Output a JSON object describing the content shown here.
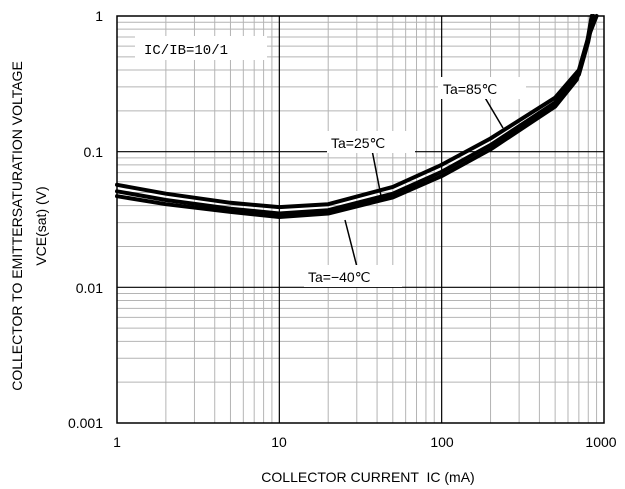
{
  "chart_data": {
    "type": "line",
    "xscale": "log",
    "yscale": "log",
    "xlim": [
      1,
      1000
    ],
    "ylim": [
      0.001,
      1
    ],
    "grid": true,
    "xlabel": "COLLECTOR CURRENT  IC (mA)",
    "ylabel_line1": "COLLECTOR TO EMITTERSATURATION VOLTAGE",
    "ylabel_line2": "VCE(sat) (V)",
    "condition_label": "IC/IB=10/1",
    "x_tick_labels": [
      "1",
      "10",
      "100",
      "1000"
    ],
    "y_tick_labels": [
      "0.001",
      "0.01",
      "0.1",
      "1"
    ],
    "series": [
      {
        "name": "Ta=85℃",
        "x": [
          1,
          2,
          5,
          10,
          20,
          50,
          100,
          200,
          500,
          700,
          800,
          900
        ],
        "y": [
          0.057,
          0.049,
          0.042,
          0.039,
          0.041,
          0.055,
          0.08,
          0.125,
          0.25,
          0.4,
          0.7,
          1.0
        ]
      },
      {
        "name": "Ta=25℃",
        "x": [
          1,
          2,
          5,
          10,
          20,
          50,
          100,
          200,
          500,
          700,
          800,
          860
        ],
        "y": [
          0.051,
          0.044,
          0.038,
          0.035,
          0.037,
          0.049,
          0.071,
          0.112,
          0.23,
          0.37,
          0.65,
          1.0
        ]
      },
      {
        "name": "Ta=-40℃",
        "x": [
          1,
          2,
          5,
          10,
          20,
          50,
          100,
          200,
          500,
          680,
          780,
          840
        ],
        "y": [
          0.047,
          0.041,
          0.036,
          0.033,
          0.035,
          0.046,
          0.066,
          0.104,
          0.215,
          0.34,
          0.6,
          1.0
        ]
      }
    ],
    "annotations": [
      "Ta=85℃",
      "Ta=25℃",
      "Ta=−40℃"
    ]
  }
}
